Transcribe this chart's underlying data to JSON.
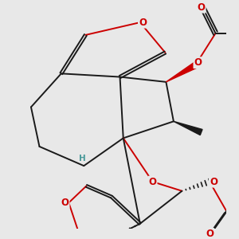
{
  "bg_color": "#e8e8e8",
  "bond_color": "#1a1a1a",
  "O_color": "#cc0000",
  "H_color": "#4a9a9a",
  "bond_lw": 1.4,
  "figsize": [
    3.0,
    3.0
  ],
  "dpi": 100,
  "xlim": [
    -1.6,
    1.8
  ],
  "ylim": [
    -1.9,
    1.7
  ]
}
